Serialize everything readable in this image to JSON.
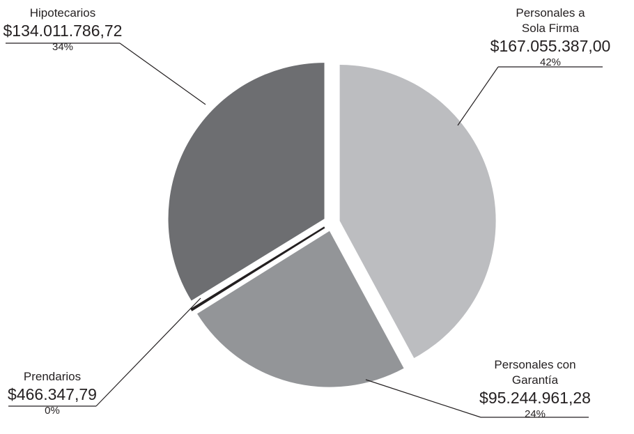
{
  "chart_data": {
    "type": "pie",
    "categories": [
      "Personales a Sola Firma",
      "Personales con Garantía",
      "Prendarios",
      "Hipotecarios"
    ],
    "values": [
      167055387.0,
      95244961.28,
      466347.79,
      134011786.72
    ],
    "value_labels": [
      "$167.055.387,00",
      "$95.244.961,28",
      "$466.347,79",
      "$134.011.786,72"
    ],
    "percent_labels": [
      "42%",
      "24%",
      "0%",
      "34%"
    ],
    "colors": [
      "#bcbdc0",
      "#939598",
      "#231f20",
      "#6d6e71"
    ]
  }
}
